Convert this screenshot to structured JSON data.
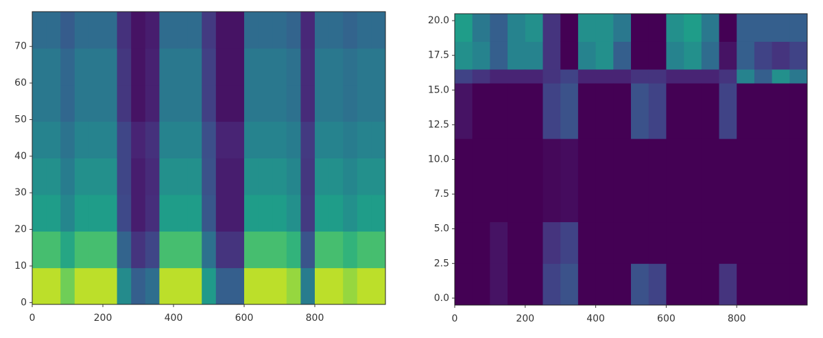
{
  "chart_data": [
    {
      "type": "heatmap",
      "colormap": "viridis",
      "zlim": [
        0,
        1
      ],
      "xlim": [
        0,
        1000
      ],
      "ylim": [
        -0.5,
        79.5
      ],
      "xticks": [
        0,
        200,
        400,
        600,
        800
      ],
      "yticks": [
        0,
        10,
        20,
        30,
        40,
        50,
        60,
        70
      ],
      "x_edges": [
        0,
        40,
        80,
        120,
        160,
        200,
        240,
        280,
        320,
        360,
        400,
        440,
        480,
        520,
        560,
        600,
        640,
        680,
        720,
        760,
        800,
        840,
        880,
        920,
        960,
        1000
      ],
      "y_edges": [
        -0.5,
        9.5,
        19.5,
        29.5,
        39.5,
        49.5,
        59.5,
        69.5,
        79.5
      ],
      "z": [
        [
          0.9,
          0.7,
          0.55,
          0.5,
          0.45,
          0.4,
          0.4,
          0.35
        ],
        [
          0.9,
          0.7,
          0.55,
          0.5,
          0.45,
          0.4,
          0.4,
          0.35
        ],
        [
          0.78,
          0.59,
          0.46,
          0.42,
          0.38,
          0.33,
          0.33,
          0.29
        ],
        [
          0.9,
          0.7,
          0.55,
          0.5,
          0.45,
          0.4,
          0.4,
          0.35
        ],
        [
          0.9,
          0.7,
          0.55,
          0.5,
          0.45,
          0.4,
          0.4,
          0.35
        ],
        [
          0.9,
          0.7,
          0.55,
          0.5,
          0.45,
          0.4,
          0.4,
          0.35
        ],
        [
          0.48,
          0.32,
          0.22,
          0.21,
          0.21,
          0.16,
          0.16,
          0.14
        ],
        [
          0.3,
          0.15,
          0.08,
          0.08,
          0.1,
          0.05,
          0.05,
          0.05
        ],
        [
          0.36,
          0.21,
          0.13,
          0.12,
          0.14,
          0.09,
          0.09,
          0.08
        ],
        [
          0.9,
          0.7,
          0.55,
          0.5,
          0.45,
          0.4,
          0.4,
          0.35
        ],
        [
          0.9,
          0.7,
          0.55,
          0.5,
          0.45,
          0.4,
          0.4,
          0.35
        ],
        [
          0.9,
          0.7,
          0.55,
          0.5,
          0.45,
          0.4,
          0.4,
          0.35
        ],
        [
          0.54,
          0.37,
          0.27,
          0.25,
          0.24,
          0.19,
          0.19,
          0.17
        ],
        [
          0.3,
          0.15,
          0.08,
          0.08,
          0.1,
          0.05,
          0.05,
          0.05
        ],
        [
          0.3,
          0.15,
          0.08,
          0.08,
          0.1,
          0.05,
          0.05,
          0.05
        ],
        [
          0.9,
          0.7,
          0.55,
          0.5,
          0.45,
          0.4,
          0.4,
          0.35
        ],
        [
          0.9,
          0.7,
          0.55,
          0.5,
          0.45,
          0.4,
          0.4,
          0.35
        ],
        [
          0.9,
          0.7,
          0.55,
          0.5,
          0.45,
          0.4,
          0.4,
          0.35
        ],
        [
          0.84,
          0.65,
          0.5,
          0.46,
          0.42,
          0.37,
          0.37,
          0.32
        ],
        [
          0.42,
          0.26,
          0.17,
          0.16,
          0.17,
          0.12,
          0.12,
          0.11
        ],
        [
          0.9,
          0.7,
          0.55,
          0.5,
          0.45,
          0.4,
          0.4,
          0.35
        ],
        [
          0.9,
          0.7,
          0.55,
          0.5,
          0.45,
          0.4,
          0.4,
          0.35
        ],
        [
          0.84,
          0.65,
          0.5,
          0.46,
          0.42,
          0.37,
          0.37,
          0.32
        ],
        [
          0.9,
          0.7,
          0.55,
          0.5,
          0.45,
          0.4,
          0.4,
          0.35
        ],
        [
          0.9,
          0.7,
          0.55,
          0.5,
          0.45,
          0.4,
          0.4,
          0.35
        ]
      ]
    },
    {
      "type": "heatmap",
      "colormap": "viridis",
      "zlim": [
        0,
        1
      ],
      "xlim": [
        0,
        1000
      ],
      "ylim": [
        -0.5,
        20.5
      ],
      "xticks": [
        0,
        200,
        400,
        600,
        800
      ],
      "yticks": [
        {
          "value": 0,
          "label": "0.0"
        },
        {
          "value": 2.5,
          "label": "2.5"
        },
        {
          "value": 5,
          "label": "5.0"
        },
        {
          "value": 7.5,
          "label": "7.5"
        },
        {
          "value": 10,
          "label": "10.0"
        },
        {
          "value": 12.5,
          "label": "12.5"
        },
        {
          "value": 15,
          "label": "15.0"
        },
        {
          "value": 17.5,
          "label": "17.5"
        },
        {
          "value": 20,
          "label": "20.0"
        }
      ],
      "x_edges": [
        0,
        50,
        100,
        150,
        200,
        250,
        300,
        350,
        400,
        450,
        500,
        550,
        600,
        650,
        700,
        750,
        800,
        850,
        900,
        950,
        1000
      ],
      "y_edges": [
        -0.5,
        2.5,
        5.5,
        11.5,
        15.5,
        16.5,
        18.5,
        20.5
      ],
      "z": [
        [
          0,
          0,
          0,
          0.05,
          0.2,
          0.5,
          0.55
        ],
        [
          0,
          0,
          0,
          0,
          0.15,
          0.45,
          0.4
        ],
        [
          0.05,
          0.05,
          0,
          0,
          0.1,
          0.3,
          0.3
        ],
        [
          0,
          0,
          0,
          0,
          0.1,
          0.45,
          0.45
        ],
        [
          0,
          0,
          0,
          0,
          0.1,
          0.45,
          0.5
        ],
        [
          0.2,
          0.15,
          0.02,
          0.2,
          0.15,
          0.15,
          0.15
        ],
        [
          0.25,
          0.2,
          0.03,
          0.25,
          0.2,
          0,
          0
        ],
        [
          0,
          0,
          0,
          0,
          0.1,
          0.45,
          0.5
        ],
        [
          0,
          0,
          0,
          0,
          0.1,
          0.5,
          0.5
        ],
        [
          0,
          0,
          0,
          0,
          0.1,
          0.3,
          0.4
        ],
        [
          0.25,
          0,
          0,
          0.25,
          0.15,
          0,
          0
        ],
        [
          0.2,
          0,
          0,
          0.2,
          0.15,
          0,
          0
        ],
        [
          0,
          0,
          0,
          0,
          0.1,
          0.45,
          0.5
        ],
        [
          0,
          0,
          0,
          0,
          0.1,
          0.5,
          0.55
        ],
        [
          0,
          0,
          0,
          0,
          0.1,
          0.35,
          0.4
        ],
        [
          0.15,
          0,
          0,
          0.2,
          0.15,
          0.05,
          0
        ],
        [
          0,
          0,
          0,
          0,
          0.45,
          0.3,
          0.3
        ],
        [
          0,
          0,
          0,
          0,
          0.3,
          0.2,
          0.3
        ],
        [
          0,
          0,
          0,
          0,
          0.5,
          0.15,
          0.3
        ],
        [
          0,
          0,
          0,
          0,
          0.4,
          0.2,
          0.3
        ]
      ]
    }
  ]
}
